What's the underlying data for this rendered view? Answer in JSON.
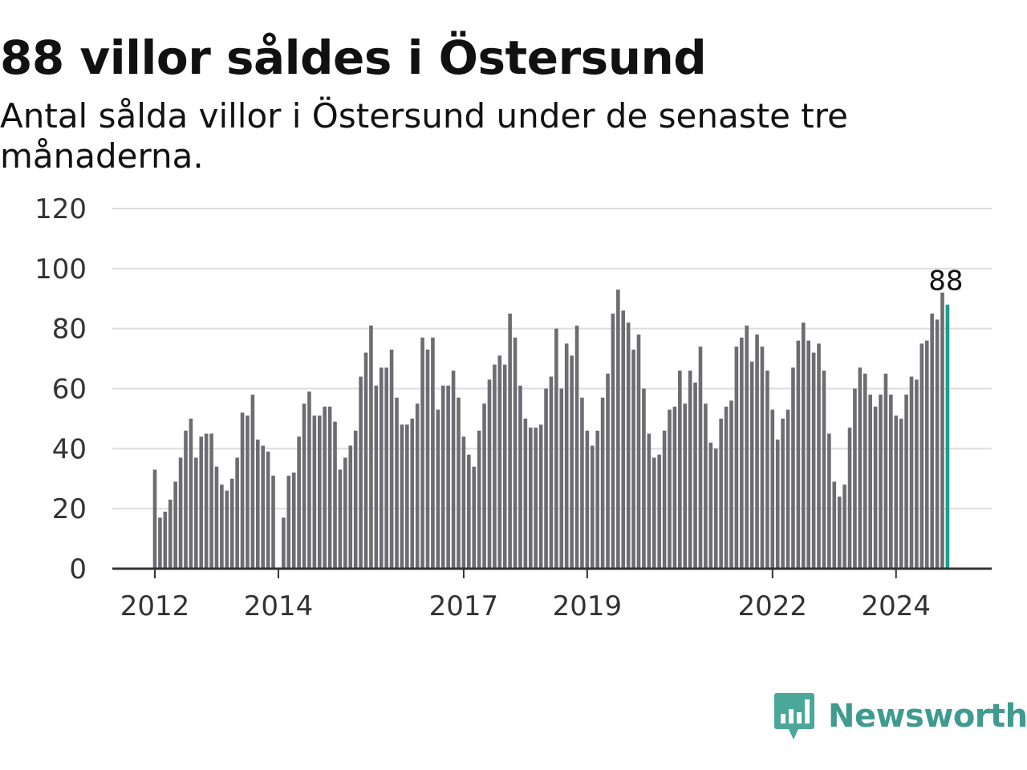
{
  "title": "88 villor såldes i Östersund",
  "subtitle": "Antal sålda villor i Östersund under de senaste tre månaderna.",
  "brand": "Newsworthy",
  "colors": {
    "bar": "#6d6c72",
    "highlight": "#1a9e91",
    "grid": "#dddddd",
    "axis": "#333333",
    "brand": "#3f9a8f",
    "logo_icon": "#4aa79a"
  },
  "icons": {
    "logo": "bar-chart-speech-bubble-icon"
  },
  "chart_data": {
    "type": "bar",
    "ylim": [
      0,
      120
    ],
    "yticks": [
      0,
      20,
      40,
      60,
      80,
      100,
      120
    ],
    "xtick_labels": [
      {
        "label": "2012",
        "index": 0
      },
      {
        "label": "2014",
        "index": 24
      },
      {
        "label": "2017",
        "index": 60
      },
      {
        "label": "2019",
        "index": 84
      },
      {
        "label": "2022",
        "index": 120
      },
      {
        "label": "2024",
        "index": 144
      }
    ],
    "grid": true,
    "highlight_last": true,
    "last_value_label": "88",
    "values": [
      33,
      17,
      19,
      23,
      29,
      37,
      46,
      50,
      37,
      44,
      45,
      45,
      34,
      28,
      26,
      30,
      37,
      52,
      51,
      58,
      43,
      41,
      39,
      31,
      0,
      17,
      31,
      32,
      44,
      55,
      59,
      51,
      51,
      54,
      54,
      49,
      33,
      37,
      41,
      46,
      64,
      72,
      81,
      61,
      67,
      67,
      73,
      57,
      48,
      48,
      50,
      55,
      77,
      73,
      77,
      53,
      61,
      61,
      66,
      57,
      44,
      38,
      34,
      46,
      55,
      63,
      68,
      71,
      68,
      85,
      77,
      61,
      50,
      47,
      47,
      48,
      60,
      64,
      80,
      60,
      75,
      71,
      81,
      57,
      46,
      41,
      46,
      57,
      65,
      85,
      93,
      86,
      82,
      73,
      78,
      60,
      45,
      37,
      38,
      46,
      53,
      54,
      66,
      55,
      66,
      62,
      74,
      55,
      42,
      40,
      50,
      54,
      56,
      74,
      77,
      81,
      69,
      78,
      74,
      66,
      53,
      43,
      50,
      53,
      67,
      76,
      82,
      76,
      72,
      75,
      66,
      45,
      29,
      24,
      28,
      47,
      60,
      67,
      65,
      58,
      54,
      58,
      65,
      58,
      51,
      50,
      58,
      64,
      63,
      75,
      76,
      85,
      83,
      92,
      88
    ]
  }
}
